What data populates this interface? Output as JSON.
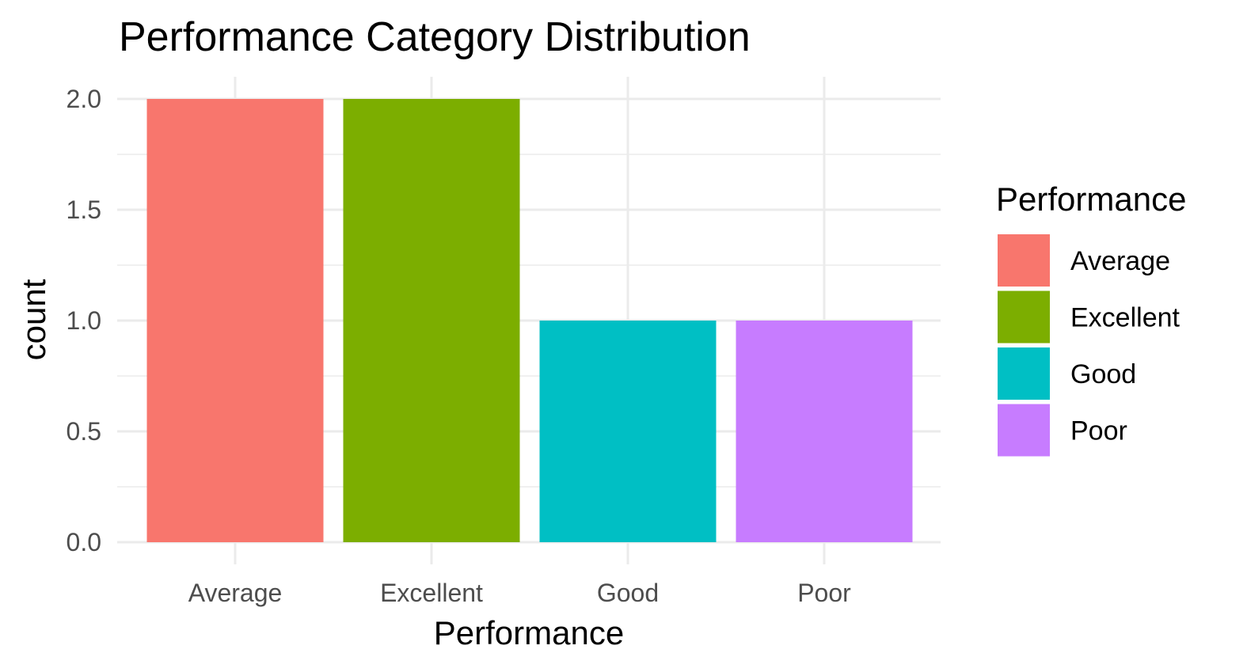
{
  "chart_data": {
    "type": "bar",
    "title": "Performance Category Distribution",
    "xlabel": "Performance",
    "ylabel": "count",
    "categories": [
      "Average",
      "Excellent",
      "Good",
      "Poor"
    ],
    "values": [
      2,
      2,
      1,
      1
    ],
    "colors": [
      "#F8766D",
      "#7CAE00",
      "#00BFC4",
      "#C77CFF"
    ],
    "ylim": [
      0,
      2
    ],
    "yticks": [
      0.0,
      0.5,
      1.0,
      1.5,
      2.0
    ],
    "ytick_labels": [
      "0.0",
      "0.5",
      "1.0",
      "1.5",
      "2.0"
    ],
    "grid": true,
    "legend": {
      "title": "Performance",
      "placement": "right",
      "entries": [
        "Average",
        "Excellent",
        "Good",
        "Poor"
      ]
    }
  }
}
